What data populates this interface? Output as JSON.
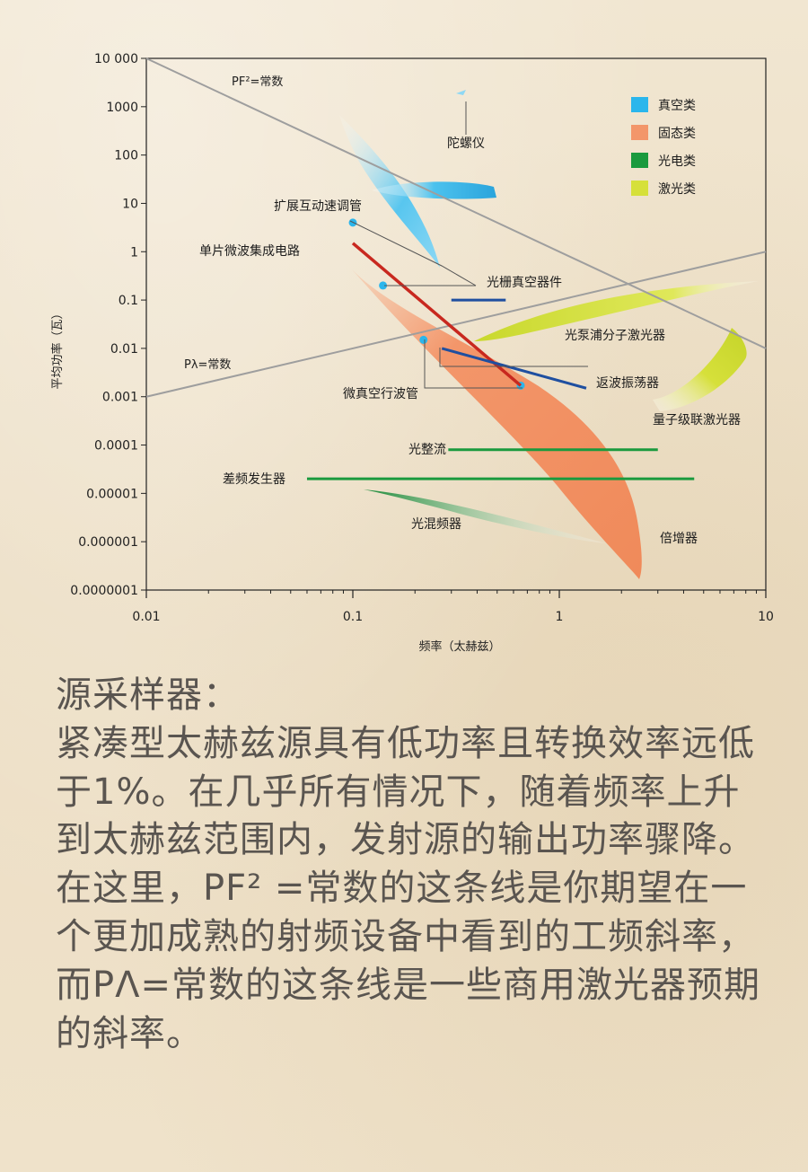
{
  "chart_data": {
    "type": "scatter",
    "xscale": "log",
    "yscale": "log",
    "xlim": [
      0.01,
      10
    ],
    "ylim": [
      1e-07,
      10000
    ],
    "xlabel": "频率（太赫兹）",
    "ylabel": "平均功率（瓦）",
    "xticks": [
      "0.01",
      "0.1",
      "1",
      "10"
    ],
    "yticks": [
      "10 000",
      "1000",
      "100",
      "10",
      "1",
      "0.1",
      "0.01",
      "0.001",
      "0.0001",
      "0.00001",
      "0.000001",
      "0.0000001"
    ],
    "legend": {
      "placement": "top-right",
      "items": [
        {
          "label": "真空类",
          "color": "#2bb6ec"
        },
        {
          "label": "固态类",
          "color": "#f3966a"
        },
        {
          "label": "光电类",
          "color": "#1a9a3e"
        },
        {
          "label": "激光类",
          "color": "#d6e03a"
        }
      ]
    },
    "reference_lines": [
      {
        "label": "PF²=常数",
        "from": [
          0.01,
          10000
        ],
        "to": [
          10,
          0.01
        ],
        "color": "#a0a0a0"
      },
      {
        "label": "Pλ=常数",
        "from": [
          0.01,
          0.001
        ],
        "to": [
          10,
          1
        ],
        "color": "#a0a0a0"
      }
    ],
    "series": [
      {
        "label": "陀螺仪",
        "category": "真空类",
        "kind": "region"
      },
      {
        "label": "扩展互动速调管",
        "category": "真空类",
        "kind": "point",
        "x": 0.1,
        "y": 4
      },
      {
        "label": "光栅真空器件",
        "category": "真空类",
        "kind": "segment",
        "x": [
          0.3,
          0.55
        ],
        "y": [
          0.1,
          0.1
        ],
        "color": "#1f4fa0"
      },
      {
        "label": "微真空行波管",
        "category": "真空类",
        "kind": "points",
        "x": [
          0.14,
          0.22,
          0.65
        ],
        "y": [
          0.2,
          0.015,
          0.0017
        ]
      },
      {
        "label": "单片微波集成电路",
        "category": "固态类",
        "kind": "segment",
        "x": [
          0.1,
          0.65
        ],
        "y": [
          1.5,
          0.0017
        ],
        "color": "#c8281f"
      },
      {
        "label": "倍增器",
        "category": "固态类",
        "kind": "region"
      },
      {
        "label": "返波振荡器",
        "category": "真空类",
        "kind": "segment",
        "x": [
          0.27,
          1.35
        ],
        "y": [
          0.01,
          0.0015
        ],
        "color": "#1f4fa0"
      },
      {
        "label": "光整流",
        "category": "光电类",
        "kind": "segment",
        "x": [
          0.29,
          3.0
        ],
        "y": [
          8e-05,
          8e-05
        ]
      },
      {
        "label": "差频发生器",
        "category": "光电类",
        "kind": "segment",
        "x": [
          0.06,
          4.5
        ],
        "y": [
          2e-05,
          2e-05
        ]
      },
      {
        "label": "光混频器",
        "category": "光电类",
        "kind": "region"
      },
      {
        "label": "光泵浦分子激光器",
        "category": "激光类",
        "kind": "region"
      },
      {
        "label": "量子级联激光器",
        "category": "激光类",
        "kind": "region"
      }
    ]
  },
  "text": {
    "title": "源采样器：",
    "paragraph": "紧凑型太赫兹源具有低功率且转换效率远低于1%。在几乎所有情况下，随着频率上升到太赫兹范围内，发射源的输出功率骤降。在这里，PF² =常数的这条线是你期望在一个更加成熟的射频设备中看到的工频斜率，而PΛ=常数的这条线是一些商用激光器预期的斜率。"
  }
}
